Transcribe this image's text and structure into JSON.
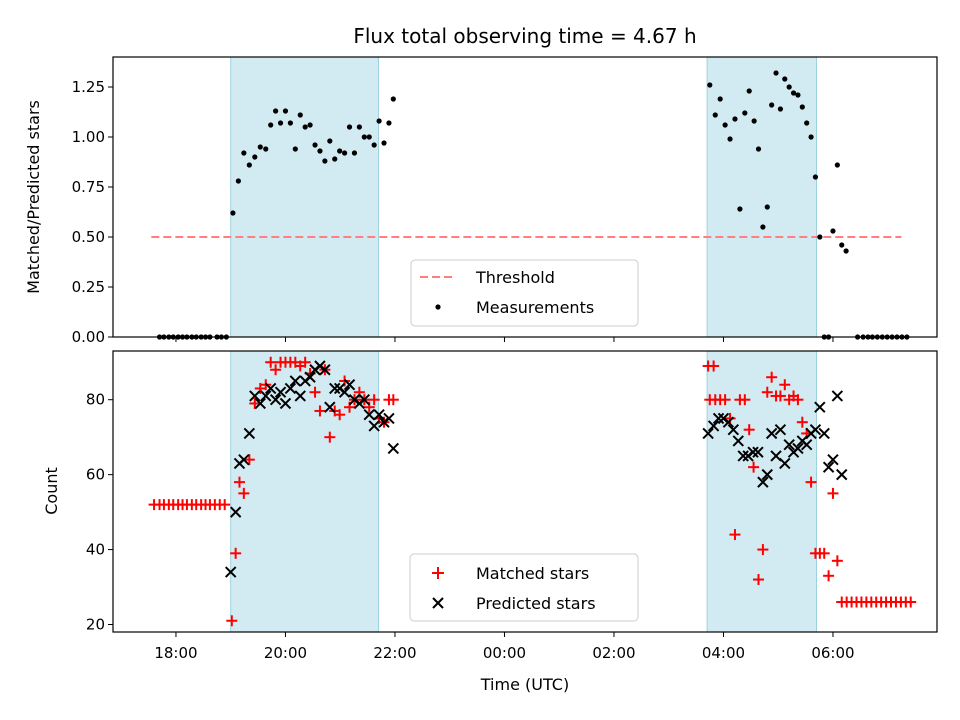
{
  "chart_data": [
    {
      "type": "scatter",
      "title": "Flux total observing time = 4.67 h",
      "xlabel": "",
      "ylabel": "Matched/Predicted stars",
      "x_unit": "hours since 00:00 UTC",
      "xlim": [
        -7.15,
        7.9
      ],
      "ylim": [
        0.0,
        1.4
      ],
      "yticks": [
        0.0,
        0.25,
        0.5,
        0.75,
        1.0,
        1.25
      ],
      "ytick_labels": [
        "0.00",
        "0.25",
        "0.50",
        "0.75",
        "1.00",
        "1.25"
      ],
      "shaded_intervals": [
        [
          -5.0,
          -2.3
        ],
        [
          3.7,
          5.7
        ]
      ],
      "shade_color": "#add8e6",
      "legend": {
        "position": "lower center",
        "entries": [
          "Threshold",
          "Measurements"
        ]
      },
      "series": [
        {
          "name": "Threshold",
          "style": "dashed-line",
          "color": "#ff7f7f",
          "points": [
            [
              -6.45,
              0.5
            ],
            [
              7.25,
              0.5
            ]
          ]
        },
        {
          "name": "Measurements",
          "style": "dot",
          "color": "#000000",
          "points": [
            [
              -6.3,
              0.0
            ],
            [
              -6.22,
              0.0
            ],
            [
              -6.13,
              0.0
            ],
            [
              -6.05,
              0.0
            ],
            [
              -5.96,
              0.0
            ],
            [
              -5.88,
              0.0
            ],
            [
              -5.8,
              0.0
            ],
            [
              -5.71,
              0.0
            ],
            [
              -5.63,
              0.0
            ],
            [
              -5.54,
              0.0
            ],
            [
              -5.46,
              0.0
            ],
            [
              -5.38,
              0.0
            ],
            [
              -5.25,
              0.0
            ],
            [
              -5.17,
              0.0
            ],
            [
              -5.08,
              0.0
            ],
            [
              -4.96,
              0.62
            ],
            [
              -4.86,
              0.78
            ],
            [
              -4.76,
              0.92
            ],
            [
              -4.66,
              0.86
            ],
            [
              -4.56,
              0.9
            ],
            [
              -4.46,
              0.95
            ],
            [
              -4.36,
              0.94
            ],
            [
              -4.27,
              1.06
            ],
            [
              -4.18,
              1.13
            ],
            [
              -4.09,
              1.07
            ],
            [
              -4.0,
              1.13
            ],
            [
              -3.91,
              1.07
            ],
            [
              -3.82,
              0.94
            ],
            [
              -3.73,
              1.11
            ],
            [
              -3.64,
              1.05
            ],
            [
              -3.55,
              1.06
            ],
            [
              -3.46,
              0.96
            ],
            [
              -3.37,
              0.93
            ],
            [
              -3.28,
              0.88
            ],
            [
              -3.19,
              0.98
            ],
            [
              -3.1,
              0.89
            ],
            [
              -3.01,
              0.93
            ],
            [
              -2.92,
              0.92
            ],
            [
              -2.83,
              1.05
            ],
            [
              -2.74,
              0.92
            ],
            [
              -2.65,
              1.05
            ],
            [
              -2.56,
              1.0
            ],
            [
              -2.47,
              1.0
            ],
            [
              -2.38,
              0.96
            ],
            [
              -2.29,
              1.08
            ],
            [
              -2.2,
              0.97
            ],
            [
              -2.11,
              1.07
            ],
            [
              -2.03,
              1.19
            ],
            [
              3.75,
              1.26
            ],
            [
              3.85,
              1.11
            ],
            [
              3.94,
              1.19
            ],
            [
              4.03,
              1.06
            ],
            [
              4.12,
              0.99
            ],
            [
              4.21,
              1.09
            ],
            [
              4.3,
              0.64
            ],
            [
              4.39,
              1.12
            ],
            [
              4.47,
              1.23
            ],
            [
              4.56,
              1.08
            ],
            [
              4.64,
              0.94
            ],
            [
              4.72,
              0.55
            ],
            [
              4.8,
              0.65
            ],
            [
              4.88,
              1.16
            ],
            [
              4.96,
              1.32
            ],
            [
              5.04,
              1.14
            ],
            [
              5.12,
              1.29
            ],
            [
              5.2,
              1.25
            ],
            [
              5.28,
              1.22
            ],
            [
              5.36,
              1.21
            ],
            [
              5.44,
              1.15
            ],
            [
              5.52,
              1.07
            ],
            [
              5.6,
              1.0
            ],
            [
              5.68,
              0.8
            ],
            [
              5.76,
              0.5
            ],
            [
              5.84,
              0.0
            ],
            [
              5.92,
              0.0
            ],
            [
              6.0,
              0.53
            ],
            [
              6.08,
              0.86
            ],
            [
              6.16,
              0.46
            ],
            [
              6.24,
              0.43
            ],
            [
              6.45,
              0.0
            ],
            [
              6.55,
              0.0
            ],
            [
              6.64,
              0.0
            ],
            [
              6.72,
              0.0
            ],
            [
              6.81,
              0.0
            ],
            [
              6.9,
              0.0
            ],
            [
              6.99,
              0.0
            ],
            [
              7.08,
              0.0
            ],
            [
              7.17,
              0.0
            ],
            [
              7.26,
              0.0
            ],
            [
              7.35,
              0.0
            ]
          ]
        }
      ]
    },
    {
      "type": "scatter",
      "title": "",
      "xlabel": "Time (UTC)",
      "ylabel": "Count",
      "x_unit": "hours since 00:00 UTC",
      "xlim": [
        -7.15,
        7.9
      ],
      "ylim": [
        18,
        93
      ],
      "yticks": [
        20,
        40,
        60,
        80
      ],
      "ytick_labels": [
        "20",
        "40",
        "60",
        "80"
      ],
      "xticks": [
        -6,
        -4,
        -2,
        0,
        2,
        4,
        6
      ],
      "xtick_labels": [
        "18:00",
        "20:00",
        "22:00",
        "00:00",
        "02:00",
        "04:00",
        "06:00"
      ],
      "shaded_intervals": [
        [
          -5.0,
          -2.3
        ],
        [
          3.7,
          5.7
        ]
      ],
      "shade_color": "#add8e6",
      "legend": {
        "position": "lower center",
        "entries": [
          "Matched stars",
          "Predicted stars"
        ]
      },
      "series": [
        {
          "name": "Matched stars",
          "marker": "plus",
          "color": "#ff0000",
          "points": [
            [
              -6.4,
              52
            ],
            [
              -6.3,
              52
            ],
            [
              -6.22,
              52
            ],
            [
              -6.13,
              52
            ],
            [
              -6.05,
              52
            ],
            [
              -5.96,
              52
            ],
            [
              -5.88,
              52
            ],
            [
              -5.8,
              52
            ],
            [
              -5.71,
              52
            ],
            [
              -5.63,
              52
            ],
            [
              -5.54,
              52
            ],
            [
              -5.46,
              52
            ],
            [
              -5.38,
              52
            ],
            [
              -5.29,
              52
            ],
            [
              -5.2,
              52
            ],
            [
              -5.11,
              52
            ],
            [
              -4.98,
              21
            ],
            [
              -4.91,
              39
            ],
            [
              -4.84,
              58
            ],
            [
              -4.76,
              55
            ],
            [
              -4.66,
              64
            ],
            [
              -4.56,
              79
            ],
            [
              -4.46,
              83
            ],
            [
              -4.36,
              84
            ],
            [
              -4.27,
              90
            ],
            [
              -4.18,
              88
            ],
            [
              -4.09,
              90
            ],
            [
              -4.0,
              90
            ],
            [
              -3.91,
              90
            ],
            [
              -3.82,
              90
            ],
            [
              -3.73,
              89
            ],
            [
              -3.64,
              90
            ],
            [
              -3.55,
              87
            ],
            [
              -3.46,
              82
            ],
            [
              -3.37,
              77
            ],
            [
              -3.28,
              88
            ],
            [
              -3.19,
              70
            ],
            [
              -3.1,
              77
            ],
            [
              -3.01,
              76
            ],
            [
              -2.92,
              85
            ],
            [
              -2.83,
              78
            ],
            [
              -2.74,
              80
            ],
            [
              -2.65,
              82
            ],
            [
              -2.56,
              80
            ],
            [
              -2.47,
              78
            ],
            [
              -2.38,
              80
            ],
            [
              -2.29,
              75
            ],
            [
              -2.2,
              74
            ],
            [
              -2.11,
              80
            ],
            [
              -2.03,
              80
            ],
            [
              3.72,
              89
            ],
            [
              3.82,
              89
            ],
            [
              3.75,
              80
            ],
            [
              3.85,
              80
            ],
            [
              3.94,
              80
            ],
            [
              4.03,
              80
            ],
            [
              4.12,
              75
            ],
            [
              4.21,
              44
            ],
            [
              4.3,
              80
            ],
            [
              4.39,
              80
            ],
            [
              4.47,
              72
            ],
            [
              4.55,
              62
            ],
            [
              4.64,
              32
            ],
            [
              4.72,
              40
            ],
            [
              4.8,
              82
            ],
            [
              4.88,
              86
            ],
            [
              4.96,
              81
            ],
            [
              5.04,
              81
            ],
            [
              5.12,
              84
            ],
            [
              5.2,
              80
            ],
            [
              5.28,
              81
            ],
            [
              5.36,
              80
            ],
            [
              5.44,
              74
            ],
            [
              5.52,
              71
            ],
            [
              5.6,
              58
            ],
            [
              5.68,
              39
            ],
            [
              5.76,
              39
            ],
            [
              5.84,
              39
            ],
            [
              5.92,
              33
            ],
            [
              6.0,
              55
            ],
            [
              6.08,
              37
            ],
            [
              6.16,
              26
            ],
            [
              6.25,
              26
            ],
            [
              6.34,
              26
            ],
            [
              6.43,
              26
            ],
            [
              6.52,
              26
            ],
            [
              6.61,
              26
            ],
            [
              6.7,
              26
            ],
            [
              6.79,
              26
            ],
            [
              6.88,
              26
            ],
            [
              6.97,
              26
            ],
            [
              7.06,
              26
            ],
            [
              7.15,
              26
            ],
            [
              7.24,
              26
            ],
            [
              7.33,
              26
            ],
            [
              7.42,
              26
            ]
          ]
        },
        {
          "name": "Predicted stars",
          "marker": "cross",
          "color": "#000000",
          "points": [
            [
              -5.0,
              34
            ],
            [
              -4.91,
              50
            ],
            [
              -4.84,
              63
            ],
            [
              -4.76,
              64
            ],
            [
              -4.66,
              71
            ],
            [
              -4.56,
              81
            ],
            [
              -4.46,
              79
            ],
            [
              -4.36,
              81
            ],
            [
              -4.27,
              83
            ],
            [
              -4.18,
              80
            ],
            [
              -4.09,
              82
            ],
            [
              -4.0,
              79
            ],
            [
              -3.91,
              83
            ],
            [
              -3.82,
              85
            ],
            [
              -3.73,
              81
            ],
            [
              -3.64,
              85
            ],
            [
              -3.55,
              86
            ],
            [
              -3.46,
              88
            ],
            [
              -3.37,
              89
            ],
            [
              -3.28,
              88
            ],
            [
              -3.19,
              78
            ],
            [
              -3.1,
              83
            ],
            [
              -3.01,
              83
            ],
            [
              -2.92,
              82
            ],
            [
              -2.83,
              84
            ],
            [
              -2.74,
              80
            ],
            [
              -2.65,
              79
            ],
            [
              -2.56,
              80
            ],
            [
              -2.47,
              76
            ],
            [
              -2.38,
              73
            ],
            [
              -2.29,
              76
            ],
            [
              -2.2,
              74
            ],
            [
              -2.11,
              75
            ],
            [
              -2.03,
              67
            ],
            [
              3.72,
              71
            ],
            [
              3.82,
              73
            ],
            [
              3.91,
              75
            ],
            [
              4.0,
              75
            ],
            [
              4.09,
              74
            ],
            [
              4.18,
              72
            ],
            [
              4.27,
              69
            ],
            [
              4.36,
              65
            ],
            [
              4.45,
              65
            ],
            [
              4.54,
              66
            ],
            [
              4.63,
              66
            ],
            [
              4.72,
              58
            ],
            [
              4.8,
              60
            ],
            [
              4.88,
              71
            ],
            [
              4.96,
              65
            ],
            [
              5.04,
              72
            ],
            [
              5.12,
              63
            ],
            [
              5.2,
              68
            ],
            [
              5.28,
              66
            ],
            [
              5.36,
              67
            ],
            [
              5.44,
              69
            ],
            [
              5.52,
              68
            ],
            [
              5.6,
              71
            ],
            [
              5.68,
              72
            ],
            [
              5.76,
              78
            ],
            [
              5.84,
              71
            ],
            [
              5.92,
              62
            ],
            [
              6.0,
              64
            ],
            [
              6.08,
              81
            ],
            [
              6.16,
              60
            ]
          ]
        }
      ]
    }
  ]
}
